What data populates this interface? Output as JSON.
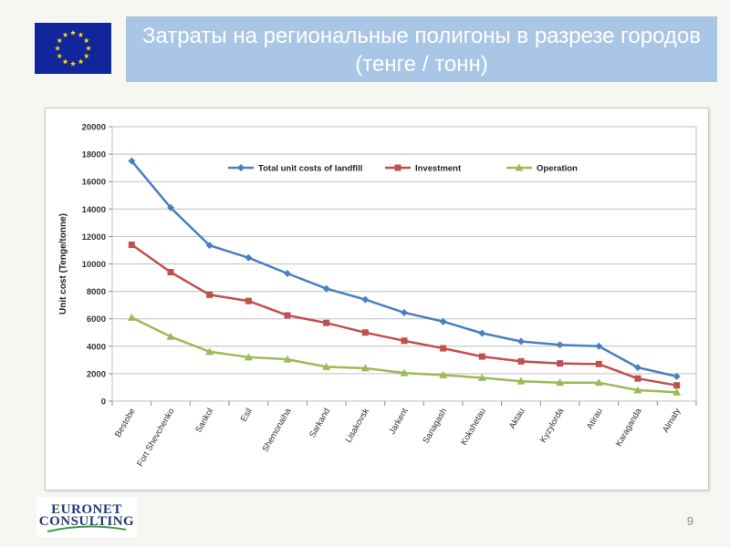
{
  "slide": {
    "title": "Затраты на региональные полигоны в разрезе городов (тенге / тонн)",
    "page_number": "9",
    "logo_line1": "EURONET",
    "logo_line2": "CONSULTING"
  },
  "colors": {
    "header_band": "#a9c6e6",
    "eu_flag_blue": "#10269a",
    "eu_flag_star": "#ffdd00"
  },
  "icons": {
    "flag": "eu-flag-icon"
  },
  "chart_data": {
    "type": "line",
    "title": "",
    "xlabel": "",
    "ylabel": "Unit cost (Tenge/tonne)",
    "ylim": [
      0,
      20000
    ],
    "yticks": [
      0,
      2000,
      4000,
      6000,
      8000,
      10000,
      12000,
      14000,
      16000,
      18000,
      20000
    ],
    "grid": true,
    "legend_position": "top",
    "categories": [
      "Bestobe",
      "Fort Shevchenko",
      "Sarikol",
      "Esil",
      "Shemonaiha",
      "Sarkand",
      "Lisakovsk",
      "Jarkent",
      "Sariagash",
      "Kokshetau",
      "Aktau",
      "Kyzylorda",
      "Atirau",
      "Karaganda",
      "Almaty"
    ],
    "series": [
      {
        "name": "Total unit costs of landfill",
        "color": "#4a7fc1",
        "marker": "diamond",
        "values": [
          17500,
          14100,
          11350,
          10450,
          9300,
          8200,
          7400,
          6450,
          5800,
          4950,
          4350,
          4100,
          4000,
          2450,
          1800
        ]
      },
      {
        "name": "Investment",
        "color": "#c0504d",
        "marker": "square",
        "values": [
          11400,
          9400,
          7750,
          7300,
          6250,
          5700,
          5000,
          4400,
          3850,
          3250,
          2900,
          2750,
          2700,
          1650,
          1150
        ]
      },
      {
        "name": "Operation",
        "color": "#9bbb59",
        "marker": "triangle",
        "values": [
          6100,
          4700,
          3600,
          3200,
          3050,
          2500,
          2400,
          2050,
          1900,
          1700,
          1450,
          1350,
          1350,
          800,
          650
        ]
      }
    ]
  }
}
